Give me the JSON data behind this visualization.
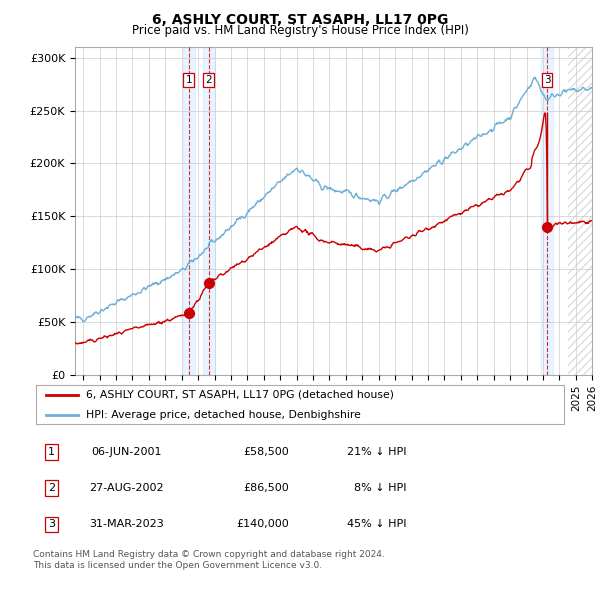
{
  "title": "6, ASHLY COURT, ST ASAPH, LL17 0PG",
  "subtitle": "Price paid vs. HM Land Registry's House Price Index (HPI)",
  "legend_line1": "6, ASHLY COURT, ST ASAPH, LL17 0PG (detached house)",
  "legend_line2": "HPI: Average price, detached house, Denbighshire",
  "transactions": [
    {
      "num": 1,
      "date": "06-JUN-2001",
      "price": 58500,
      "pct": "21% ↓ HPI",
      "x_year": 2001.43
    },
    {
      "num": 2,
      "date": "27-AUG-2002",
      "price": 86500,
      "pct": "8% ↓ HPI",
      "x_year": 2002.65
    },
    {
      "num": 3,
      "date": "31-MAR-2023",
      "price": 140000,
      "pct": "45% ↓ HPI",
      "x_year": 2023.25
    }
  ],
  "footer": "Contains HM Land Registry data © Crown copyright and database right 2024.\nThis data is licensed under the Open Government Licence v3.0.",
  "hpi_color": "#6baed6",
  "price_color": "#cc0000",
  "vline_color": "#cc0000",
  "band_color": "#ddeeff",
  "background_color": "#ffffff",
  "grid_color": "#cccccc",
  "ylim": [
    0,
    310000
  ],
  "xlim_start": 1994.5,
  "xlim_end": 2026.0
}
